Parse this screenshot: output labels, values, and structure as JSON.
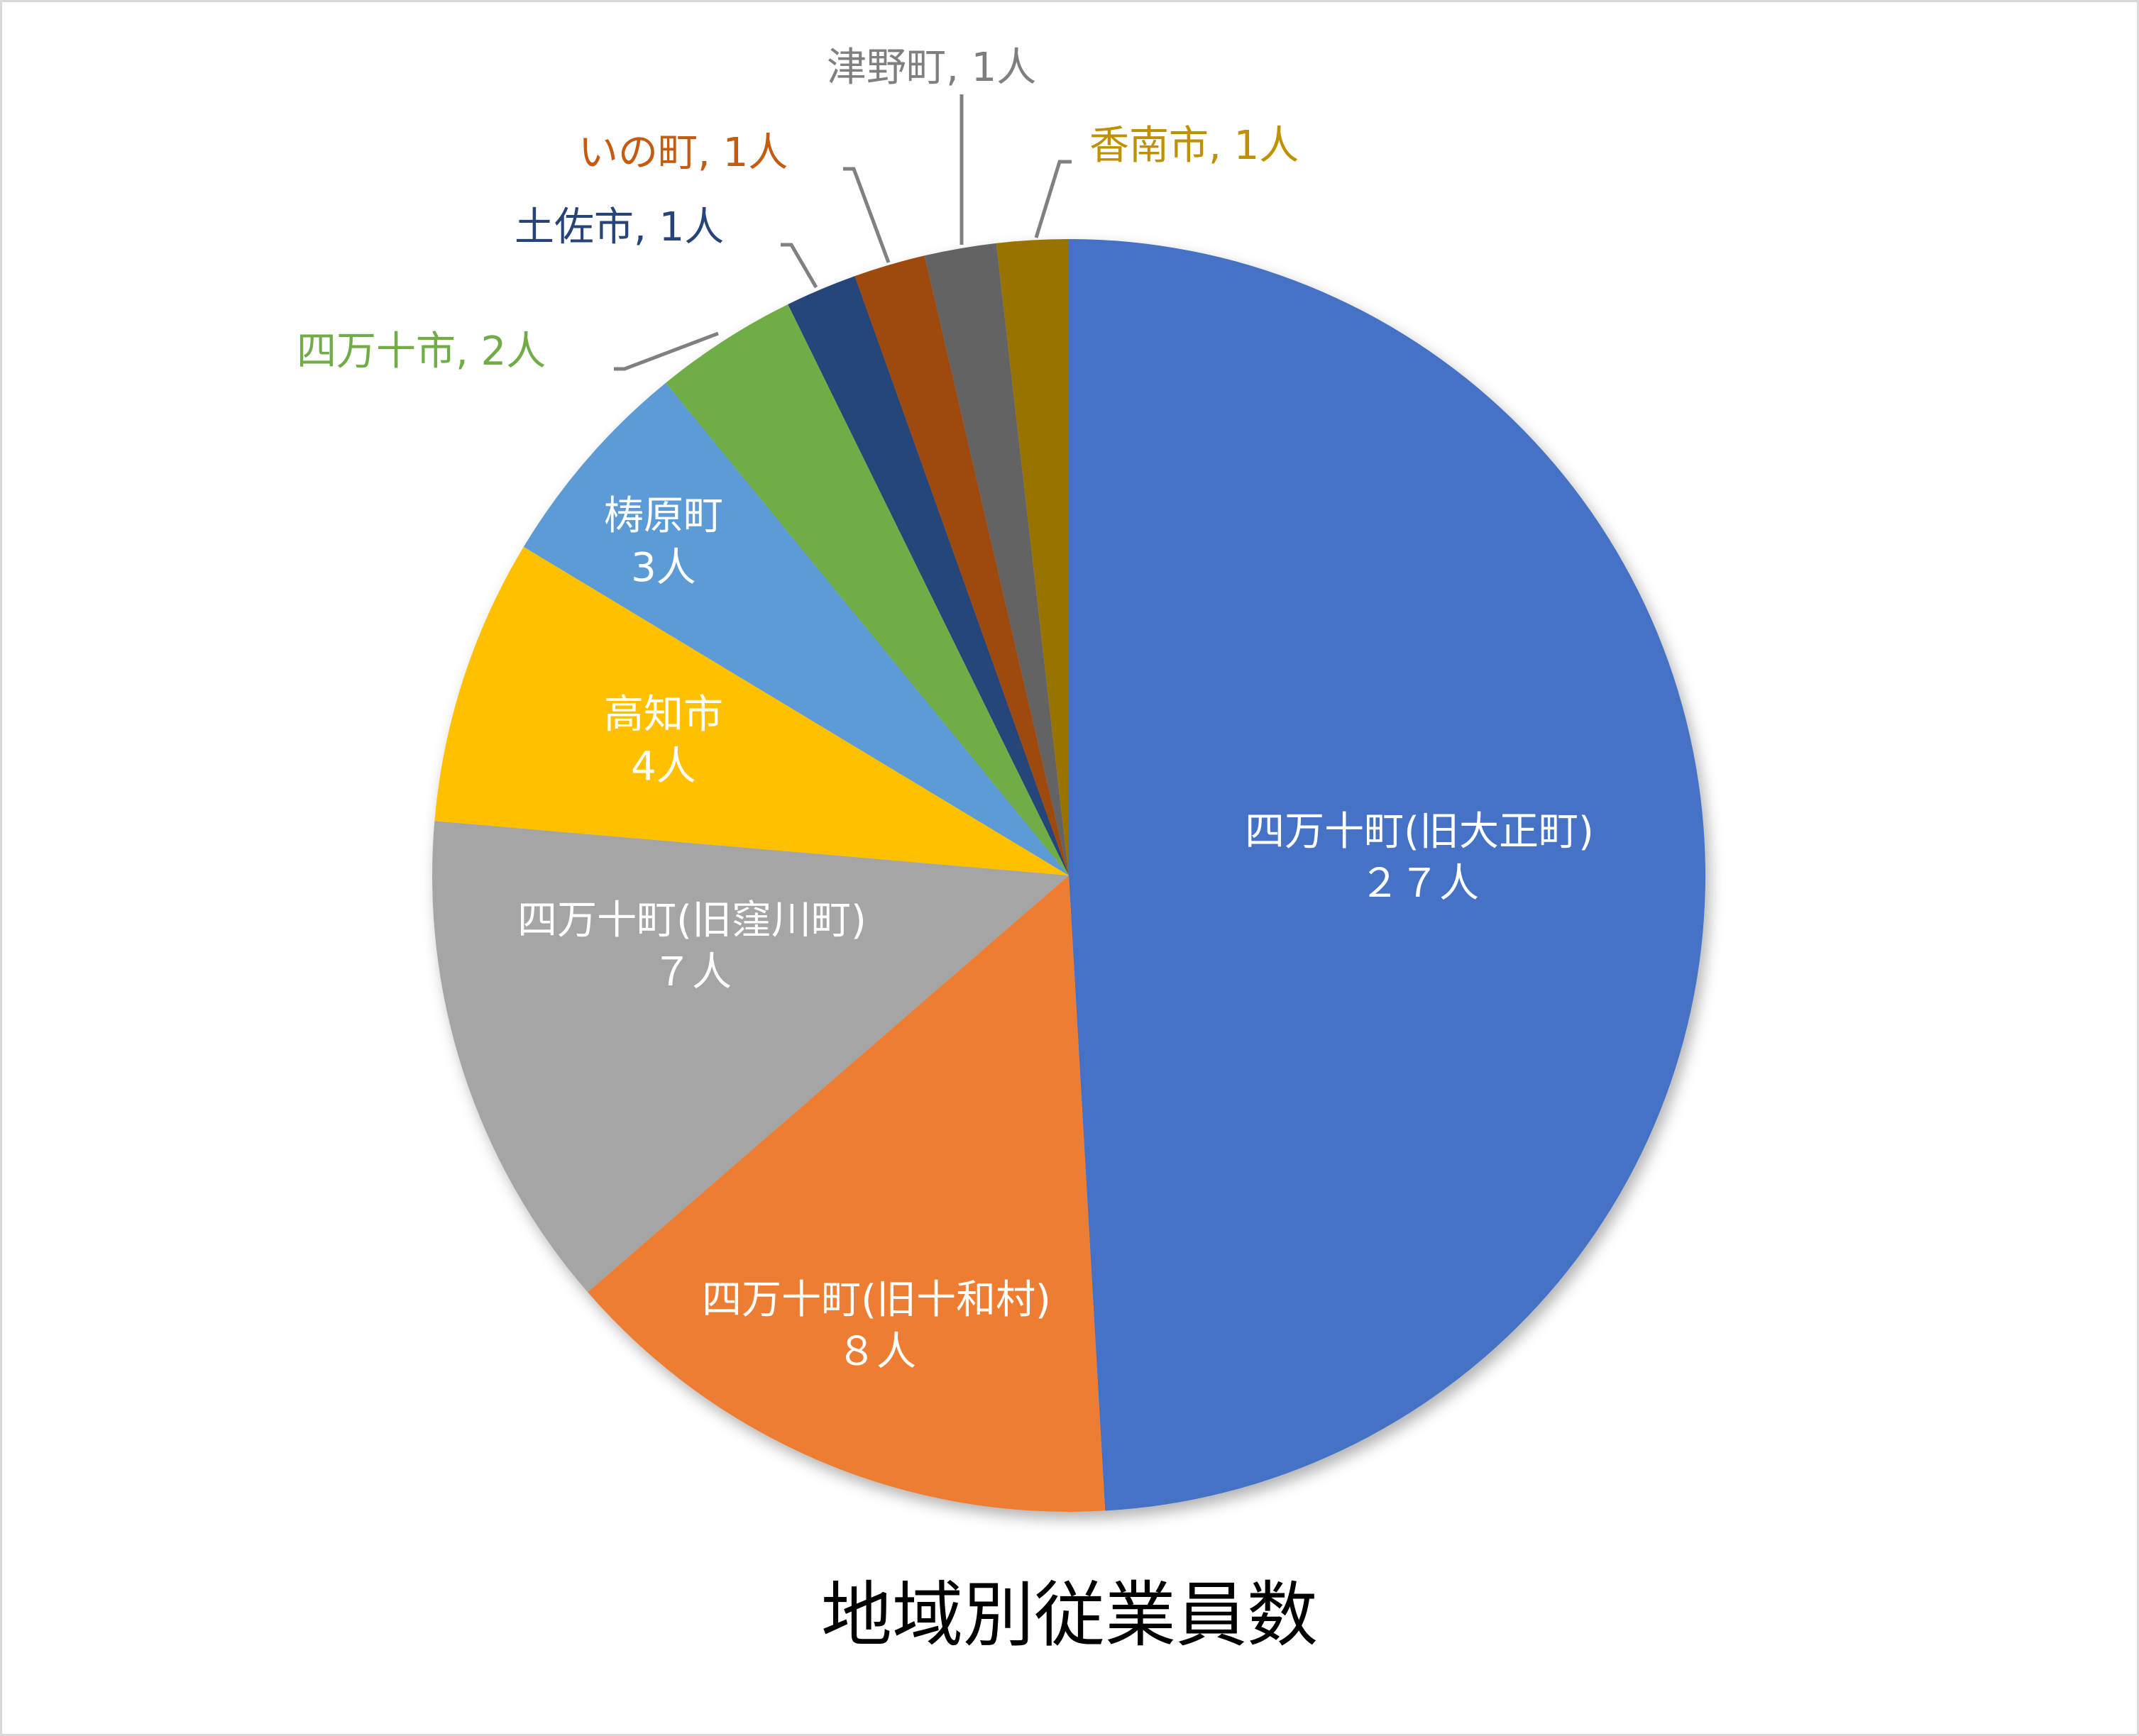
{
  "chart_data": {
    "type": "pie",
    "title": "地域別従業員数",
    "unit": "人",
    "categories": [
      "四万十町(旧大正町)",
      "四万十町(旧十和村)",
      "四万十町(旧窪川町)",
      "高知市",
      "梼原町",
      "四万十市",
      "土佐市",
      "いの町",
      "津野町",
      "香南市"
    ],
    "values": [
      27,
      8,
      7,
      4,
      3,
      2,
      1,
      1,
      1,
      1
    ],
    "colors": [
      "#4472C4",
      "#ED7D31",
      "#A5A5A5",
      "#FFC000",
      "#5B9BD5",
      "#70AD47",
      "#264478",
      "#9E480E",
      "#636363",
      "#997300"
    ],
    "start_angle": "12 o'clock, clockwise",
    "legend": "none (data labels)"
  },
  "labels": [
    {
      "name": "四万十町(旧大正町)",
      "value": "２７人"
    },
    {
      "name": "四万十町(旧十和村)",
      "value": "８人"
    },
    {
      "name": "四万十町(旧窪川町)",
      "value": "７人"
    },
    {
      "name": "高知市",
      "value": "4人"
    },
    {
      "name": "梼原町",
      "value": "3人"
    },
    {
      "text": "四万十市, 2人"
    },
    {
      "text": "土佐市, 1人"
    },
    {
      "text": "いの町, 1人"
    },
    {
      "text": "津野町, 1人"
    },
    {
      "text": "香南市, 1人"
    }
  ]
}
